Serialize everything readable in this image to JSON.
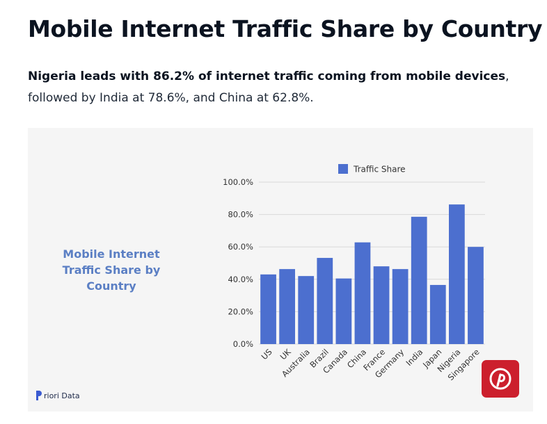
{
  "page": {
    "title": "Mobile Internet Traffic Share by Country",
    "summary_bold": "Nigeria leads with 86.2% of internet traffic coming from mobile devices",
    "summary_rest": ", followed by India at 78.6%, and China at 62.8%."
  },
  "card": {
    "heading": "Mobile Internet Traffic Share by Country",
    "brand": "riori Data"
  },
  "chart_data": {
    "type": "bar",
    "categories": [
      "US",
      "UK",
      "Australia",
      "Brazil",
      "Canada",
      "China",
      "France",
      "Germany",
      "India",
      "Japan",
      "Nigeria",
      "Singapore"
    ],
    "series": [
      {
        "name": "Traffic Share",
        "values": [
          43.0,
          46.3,
          42.0,
          53.2,
          40.5,
          62.8,
          48.0,
          46.3,
          78.6,
          36.5,
          86.2,
          60.0
        ]
      }
    ],
    "ylim": [
      0,
      100
    ],
    "yticks": [
      "0.0%",
      "20.0%",
      "40.0%",
      "60.0%",
      "80.0%",
      "100.0%"
    ],
    "ytick_values": [
      0,
      20,
      40,
      60,
      80,
      100
    ],
    "legend": "top",
    "grid": true,
    "bar_color": "#4c6fcf",
    "grid_color": "#d9d9d9"
  },
  "pinterest": {
    "icon": "pinterest-icon",
    "color": "#cc1f2d"
  }
}
